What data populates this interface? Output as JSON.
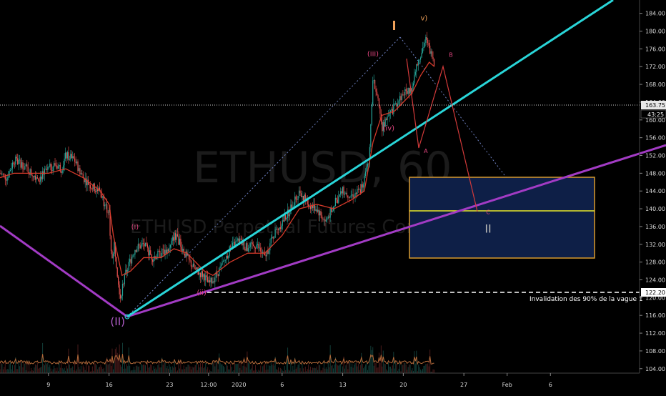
{
  "chart_data": {
    "type": "candlestick",
    "symbol": "ETHUSD",
    "watermark_symbol": "ETHUSD, 60",
    "watermark_name": "ETHUSD Perpetual Futures Contract",
    "y_ticks": [
      104,
      108,
      112,
      116,
      120,
      124,
      128,
      132,
      136,
      140,
      144,
      148,
      152,
      156,
      160,
      164,
      168,
      172,
      176,
      180,
      184
    ],
    "x_ticks": [
      {
        "label": "9",
        "t": 0
      },
      {
        "label": "16",
        "t": 7
      },
      {
        "label": "23",
        "t": 14
      },
      {
        "label": "12:00",
        "t": 18.5
      },
      {
        "label": "2020",
        "t": 22
      },
      {
        "label": "6",
        "t": 27
      },
      {
        "label": "13",
        "t": 34
      },
      {
        "label": "20",
        "t": 41
      },
      {
        "label": "27",
        "t": 48
      },
      {
        "label": "Feb",
        "t": 53
      },
      {
        "label": "6",
        "t": 58
      }
    ],
    "ylim": [
      103,
      187
    ],
    "xlim": [
      -5.6,
      68.3
    ],
    "price_path": [
      [
        -5.6,
        148
      ],
      [
        -4.8,
        147
      ],
      [
        -4,
        151
      ],
      [
        -3,
        150
      ],
      [
        -2,
        148
      ],
      [
        -1,
        147
      ],
      [
        0,
        149
      ],
      [
        0.8,
        150
      ],
      [
        1.5,
        149
      ],
      [
        2,
        152
      ],
      [
        3,
        151
      ],
      [
        4,
        147
      ],
      [
        5,
        145
      ],
      [
        6,
        144
      ],
      [
        6.5,
        141
      ],
      [
        7,
        139
      ],
      [
        7.3,
        128
      ],
      [
        7.6,
        132
      ],
      [
        8,
        125
      ],
      [
        8.3,
        120
      ],
      [
        8.6,
        123
      ],
      [
        9,
        126
      ],
      [
        10,
        131
      ],
      [
        11,
        132
      ],
      [
        12,
        129
      ],
      [
        13,
        130
      ],
      [
        14,
        131
      ],
      [
        14.5,
        134
      ],
      [
        15,
        133
      ],
      [
        16,
        129
      ],
      [
        17,
        126
      ],
      [
        18,
        125
      ],
      [
        18.5,
        123
      ],
      [
        19,
        124
      ],
      [
        20,
        127
      ],
      [
        21,
        131
      ],
      [
        22,
        133
      ],
      [
        23,
        131
      ],
      [
        24,
        132
      ],
      [
        25,
        129
      ],
      [
        26,
        134
      ],
      [
        27,
        137
      ],
      [
        28,
        140
      ],
      [
        29,
        144
      ],
      [
        30,
        141
      ],
      [
        31,
        140
      ],
      [
        32,
        137
      ],
      [
        33,
        141
      ],
      [
        34,
        144
      ],
      [
        35,
        143
      ],
      [
        36,
        144
      ],
      [
        37,
        150
      ],
      [
        37.5,
        170
      ],
      [
        38,
        165
      ],
      [
        38.5,
        158
      ],
      [
        39,
        160
      ],
      [
        40,
        163
      ],
      [
        41,
        166
      ],
      [
        42,
        167
      ],
      [
        42.5,
        172
      ],
      [
        43,
        175
      ],
      [
        43.6,
        178
      ],
      [
        44.2,
        175
      ],
      [
        44.6,
        172
      ]
    ],
    "ema_path": [
      [
        -5.6,
        147
      ],
      [
        -4,
        148
      ],
      [
        -2,
        148
      ],
      [
        0,
        148
      ],
      [
        2,
        149
      ],
      [
        4,
        147
      ],
      [
        6,
        144
      ],
      [
        7,
        141
      ],
      [
        7.5,
        134
      ],
      [
        8.5,
        125
      ],
      [
        9.5,
        126
      ],
      [
        11,
        129
      ],
      [
        13,
        129
      ],
      [
        14.5,
        131
      ],
      [
        16,
        130
      ],
      [
        18,
        126
      ],
      [
        19,
        125
      ],
      [
        21,
        128
      ],
      [
        23,
        130
      ],
      [
        25,
        130
      ],
      [
        27,
        134
      ],
      [
        29,
        140
      ],
      [
        31,
        141
      ],
      [
        33,
        140
      ],
      [
        35,
        142
      ],
      [
        36.5,
        144
      ],
      [
        37.5,
        155
      ],
      [
        38.5,
        161
      ],
      [
        40,
        162
      ],
      [
        42,
        166
      ],
      [
        43,
        170
      ],
      [
        44,
        173
      ],
      [
        44.6,
        172
      ]
    ],
    "current_price": "163.75",
    "countdown": "43:25",
    "invalidation_level": "122.20",
    "invalidation_text": "Invalidation des 90% de la vague 1",
    "wave_labels": [
      {
        "text": "(II)",
        "t": 8.0,
        "y": 113.8,
        "color": "#b05cc8"
      },
      {
        "text": "(i)",
        "t": 10.0,
        "y": 135.4,
        "color": "#e0457f"
      },
      {
        "text": "(ii)",
        "t": 17.7,
        "y": 120.6,
        "color": "#e0457f"
      },
      {
        "text": "(iii)",
        "t": 37.5,
        "y": 174.4,
        "color": "#e0457f"
      },
      {
        "text": "(iv)",
        "t": 39.3,
        "y": 157.6,
        "color": "#e0457f"
      },
      {
        "text": "v)",
        "t": 43.4,
        "y": 182.4,
        "color": "#f0a15a"
      },
      {
        "text": "B",
        "t": 46.5,
        "y": 174.2,
        "color": "#e0457f"
      },
      {
        "text": "A",
        "t": 43.6,
        "y": 152.6,
        "color": "#e0457f"
      },
      {
        "text": "C",
        "t": 50.8,
        "y": 138.8,
        "color": "#e0457f"
      },
      {
        "text": "II",
        "t": 50.8,
        "y": 134.6,
        "color": "#b8b8b8"
      }
    ]
  }
}
